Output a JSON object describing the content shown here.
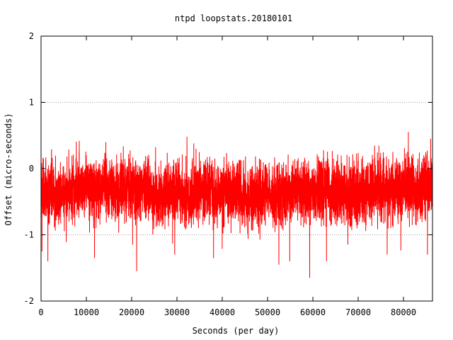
{
  "chart_data": {
    "type": "line",
    "title": "ntpd loopstats.20180101",
    "xlabel": "Seconds (per day)",
    "ylabel": "Offset (micro-seconds)",
    "xlim": [
      0,
      86400
    ],
    "ylim": [
      -2,
      2
    ],
    "x_ticks": [
      0,
      10000,
      20000,
      30000,
      40000,
      50000,
      60000,
      70000,
      80000
    ],
    "x_tick_labels": [
      "0",
      "10000",
      "20000",
      "30000",
      "40000",
      "50000",
      "60000",
      "70000",
      "80000"
    ],
    "y_ticks": [
      -2,
      -1,
      0,
      1,
      2
    ],
    "y_tick_labels": [
      "-2",
      "-1",
      "0",
      "1",
      "2"
    ],
    "grid": "horizontal dotted lines at y=-1 and y=1",
    "legend": "none",
    "series_color": "#ff0000",
    "sample_interval_s": 16,
    "offset_center": -0.35,
    "offset_typical_range": [
      -0.9,
      0.2
    ],
    "extremes": [
      {
        "x": 200,
        "y": -1.25
      },
      {
        "x": 1500,
        "y": -1.4
      },
      {
        "x": 2300,
        "y": 0.25
      },
      {
        "x": 11800,
        "y": -1.35
      },
      {
        "x": 14300,
        "y": 0.4
      },
      {
        "x": 20200,
        "y": -1.15
      },
      {
        "x": 21100,
        "y": -1.55
      },
      {
        "x": 29500,
        "y": -1.3
      },
      {
        "x": 34200,
        "y": 0.3
      },
      {
        "x": 52500,
        "y": -1.45
      },
      {
        "x": 54900,
        "y": -1.4
      },
      {
        "x": 59300,
        "y": -1.65
      },
      {
        "x": 63000,
        "y": -1.4
      },
      {
        "x": 76400,
        "y": -1.3
      },
      {
        "x": 85300,
        "y": -1.3
      },
      {
        "x": 86000,
        "y": 0.45
      }
    ]
  }
}
